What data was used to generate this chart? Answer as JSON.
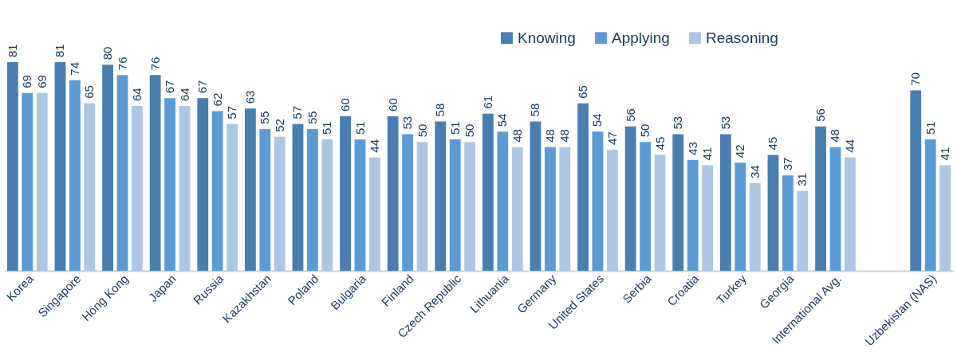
{
  "chart_data": {
    "type": "bar",
    "categories": [
      "Korea",
      "Singapore",
      "Hong Kong",
      "Japan",
      "Russia",
      "Kazakhstan",
      "Poland",
      "Bulgaria",
      "Finland",
      "Czech Republic",
      "Lithuania",
      "Germany",
      "United States",
      "Serbia",
      "Croatia",
      "Turkey",
      "Georgia",
      "International Avg.",
      null,
      "Uzbekistan (NAS)"
    ],
    "series": [
      {
        "name": "Knowing",
        "color": "#4a7eb0",
        "values": [
          81,
          81,
          80,
          76,
          67,
          63,
          57,
          60,
          60,
          58,
          61,
          58,
          65,
          56,
          53,
          53,
          45,
          56,
          null,
          70
        ]
      },
      {
        "name": "Applying",
        "color": "#5b9bd5",
        "values": [
          69,
          74,
          76,
          67,
          62,
          55,
          55,
          51,
          53,
          51,
          54,
          48,
          54,
          50,
          43,
          42,
          37,
          48,
          null,
          51
        ]
      },
      {
        "name": "Reasoning",
        "color": "#aec6e6",
        "values": [
          69,
          65,
          64,
          64,
          57,
          52,
          51,
          44,
          50,
          50,
          48,
          48,
          47,
          45,
          41,
          34,
          31,
          44,
          null,
          41
        ]
      }
    ],
    "data_labels": true,
    "legend": "top right",
    "grid": false,
    "tick_labels": "x"
  }
}
